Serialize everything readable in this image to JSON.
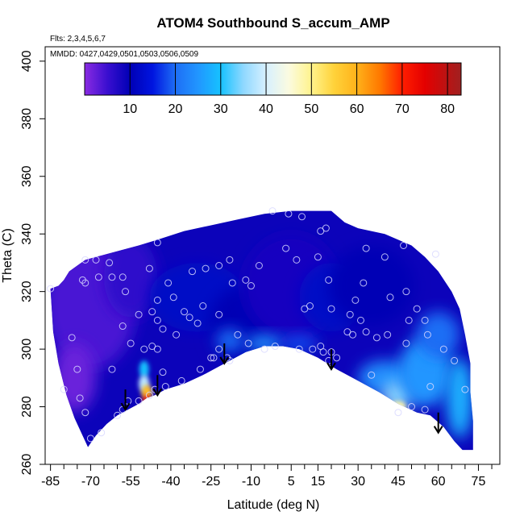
{
  "chart_data": {
    "type": "heatmap",
    "title": "ATOM4 Southbound S_accum_AMP",
    "flights_label": "Flts: 2,3,4,5,6,7",
    "mmdd_label": "MMDD: 0427,0429,0501,0503,0506,0509",
    "xlabel": "Latitude (deg N)",
    "ylabel": "Theta (C)",
    "xlim": [
      -87,
      83
    ],
    "ylim": [
      260,
      405
    ],
    "x_ticks": [
      -85,
      -70,
      -55,
      -40,
      -25,
      -10,
      5,
      15,
      30,
      45,
      60,
      75
    ],
    "x_minor_ticks": [
      -80,
      -75,
      -65,
      -60,
      -50,
      -45,
      -35,
      -30,
      -20,
      -15,
      -5,
      0,
      10,
      20,
      25,
      35,
      40,
      50,
      55,
      65,
      70,
      80
    ],
    "y_ticks": [
      260,
      280,
      300,
      320,
      340,
      360,
      380,
      400
    ],
    "colorbar": {
      "range": [
        0,
        83
      ],
      "ticks": [
        10,
        20,
        30,
        40,
        50,
        60,
        70,
        80
      ],
      "stops": [
        {
          "v": 0,
          "c": "#8a2be2"
        },
        {
          "v": 5,
          "c": "#3a0fd0"
        },
        {
          "v": 10,
          "c": "#0000b5"
        },
        {
          "v": 15,
          "c": "#0015e0"
        },
        {
          "v": 20,
          "c": "#1e6ef5"
        },
        {
          "v": 25,
          "c": "#2196ff"
        },
        {
          "v": 30,
          "c": "#16c2ff"
        },
        {
          "v": 35,
          "c": "#8fd8ff"
        },
        {
          "v": 40,
          "c": "#d7f0ff"
        },
        {
          "v": 45,
          "c": "#fbfbe0"
        },
        {
          "v": 50,
          "c": "#fff38c"
        },
        {
          "v": 55,
          "c": "#ffd23a"
        },
        {
          "v": 60,
          "c": "#ffb21a"
        },
        {
          "v": 65,
          "c": "#ff7a00"
        },
        {
          "v": 70,
          "c": "#ff1e00"
        },
        {
          "v": 75,
          "c": "#e40000"
        },
        {
          "v": 83,
          "c": "#a02020"
        }
      ]
    },
    "data_region_top": [
      [
        -85,
        321
      ],
      [
        -82,
        322
      ],
      [
        -80,
        324
      ],
      [
        -78,
        327
      ],
      [
        -75,
        329
      ],
      [
        -72,
        331
      ],
      [
        -68,
        332
      ],
      [
        -60,
        334
      ],
      [
        -52,
        336
      ],
      [
        -45,
        338
      ],
      [
        -35,
        341
      ],
      [
        -25,
        343
      ],
      [
        -15,
        345
      ],
      [
        -5,
        347
      ],
      [
        5,
        348
      ],
      [
        20,
        348
      ],
      [
        25,
        344
      ],
      [
        30,
        342
      ],
      [
        40,
        340
      ],
      [
        50,
        336
      ],
      [
        55,
        332
      ],
      [
        60,
        327
      ],
      [
        65,
        320
      ],
      [
        68,
        314
      ],
      [
        70,
        305
      ],
      [
        72,
        295
      ],
      [
        72,
        285
      ],
      [
        73,
        275
      ],
      [
        73,
        265
      ]
    ],
    "data_region_bottom": [
      [
        -85,
        321
      ],
      [
        -84,
        306
      ],
      [
        -82,
        295
      ],
      [
        -79,
        284
      ],
      [
        -76,
        276
      ],
      [
        -73,
        270
      ],
      [
        -71,
        266
      ],
      [
        -68,
        270
      ],
      [
        -64,
        274
      ],
      [
        -60,
        277
      ],
      [
        -56,
        279
      ],
      [
        -52,
        281
      ],
      [
        -49,
        283
      ],
      [
        -46,
        284
      ],
      [
        -42,
        286
      ],
      [
        -35,
        288
      ],
      [
        -28,
        291
      ],
      [
        -20,
        295
      ],
      [
        -12,
        299
      ],
      [
        -5,
        301
      ],
      [
        2,
        301
      ],
      [
        8,
        300
      ],
      [
        15,
        297
      ],
      [
        22,
        293
      ],
      [
        30,
        289
      ],
      [
        38,
        285
      ],
      [
        45,
        281
      ],
      [
        52,
        278
      ],
      [
        57,
        277
      ],
      [
        62,
        273
      ],
      [
        66,
        268
      ],
      [
        69,
        265
      ],
      [
        73,
        265
      ]
    ],
    "field_patches": [
      {
        "cx": -70,
        "cy": 315,
        "rx": 17,
        "ry": 22,
        "v": 4
      },
      {
        "cx": -76,
        "cy": 290,
        "rx": 8,
        "ry": 12,
        "v": 2
      },
      {
        "cx": -55,
        "cy": 325,
        "rx": 10,
        "ry": 14,
        "v": 6
      },
      {
        "cx": -30,
        "cy": 318,
        "rx": 18,
        "ry": 12,
        "v": 12
      },
      {
        "cx": -12,
        "cy": 308,
        "rx": 14,
        "ry": 14,
        "v": 10
      },
      {
        "cx": 5,
        "cy": 322,
        "rx": 18,
        "ry": 18,
        "v": 8
      },
      {
        "cx": 20,
        "cy": 318,
        "rx": 12,
        "ry": 12,
        "v": 12
      },
      {
        "cx": 35,
        "cy": 322,
        "rx": 16,
        "ry": 14,
        "v": 10
      },
      {
        "cx": -5,
        "cy": 302,
        "rx": 7,
        "ry": 3,
        "v": 24
      },
      {
        "cx": 8,
        "cy": 302,
        "rx": 7,
        "ry": 3,
        "v": 18
      },
      {
        "cx": -18,
        "cy": 303,
        "rx": 5,
        "ry": 4,
        "v": 20
      },
      {
        "cx": 40,
        "cy": 290,
        "rx": 10,
        "ry": 6,
        "v": 24
      },
      {
        "cx": 45,
        "cy": 284,
        "rx": 6,
        "ry": 5,
        "v": 35
      },
      {
        "cx": 55,
        "cy": 292,
        "rx": 10,
        "ry": 12,
        "v": 25
      },
      {
        "cx": 60,
        "cy": 305,
        "rx": 8,
        "ry": 8,
        "v": 20
      },
      {
        "cx": 68,
        "cy": 283,
        "rx": 5,
        "ry": 14,
        "v": 28
      },
      {
        "cx": 45,
        "cy": 280,
        "rx": 3,
        "ry": 2,
        "v": 48
      },
      {
        "cx": -50,
        "cy": 293,
        "rx": 1.8,
        "ry": 3,
        "v": 30
      },
      {
        "cx": -50,
        "cy": 288,
        "rx": 2,
        "ry": 3,
        "v": 38
      },
      {
        "cx": -49,
        "cy": 285,
        "rx": 2,
        "ry": 2.5,
        "v": 58
      },
      {
        "cx": -49,
        "cy": 282,
        "rx": 1.5,
        "ry": 2,
        "v": 70
      }
    ],
    "background_value": 9,
    "points": [
      [
        -85,
        321
      ],
      [
        -80,
        286
      ],
      [
        -72,
        331
      ],
      [
        -73,
        324
      ],
      [
        -72,
        323
      ],
      [
        -68,
        331
      ],
      [
        -63,
        330
      ],
      [
        -67,
        325
      ],
      [
        -62,
        325
      ],
      [
        -58,
        325
      ],
      [
        -57,
        320
      ],
      [
        -45,
        337
      ],
      [
        -47,
        313
      ],
      [
        -45,
        317
      ],
      [
        -45,
        310
      ],
      [
        -43,
        307
      ],
      [
        -47,
        301
      ],
      [
        -50,
        300
      ],
      [
        -45,
        300
      ],
      [
        -38,
        305
      ],
      [
        -41,
        323
      ],
      [
        -32,
        327
      ],
      [
        -27,
        328
      ],
      [
        -33,
        311
      ],
      [
        -28,
        315
      ],
      [
        -22,
        312
      ],
      [
        -18,
        331
      ],
      [
        -12,
        324
      ],
      [
        -22,
        329
      ],
      [
        -17,
        323
      ],
      [
        -19,
        297
      ],
      [
        -18,
        296
      ],
      [
        -10,
        322
      ],
      [
        -7,
        329
      ],
      [
        -2,
        348
      ],
      [
        4,
        347
      ],
      [
        3,
        335
      ],
      [
        9,
        346
      ],
      [
        7,
        331
      ],
      [
        10,
        314
      ],
      [
        12,
        315
      ],
      [
        15,
        332
      ],
      [
        16,
        341
      ],
      [
        18,
        342
      ],
      [
        19,
        324
      ],
      [
        17,
        299
      ],
      [
        16,
        301
      ],
      [
        22,
        297
      ],
      [
        20,
        299
      ],
      [
        19,
        296
      ],
      [
        26,
        306
      ],
      [
        29,
        317
      ],
      [
        32,
        323
      ],
      [
        33,
        335
      ],
      [
        27,
        312
      ],
      [
        40,
        332
      ],
      [
        47,
        336
      ],
      [
        48,
        320
      ],
      [
        49,
        310
      ],
      [
        42,
        318
      ],
      [
        52,
        314
      ],
      [
        55,
        310
      ],
      [
        59,
        333
      ],
      [
        48,
        302
      ],
      [
        41,
        305
      ],
      [
        37,
        304
      ],
      [
        35,
        291
      ],
      [
        28,
        305
      ],
      [
        31,
        310
      ],
      [
        33,
        306
      ],
      [
        20,
        314
      ],
      [
        13,
        300
      ],
      [
        8,
        300
      ],
      [
        -1,
        301
      ],
      [
        -5,
        300
      ],
      [
        -11,
        302
      ],
      [
        -22,
        300
      ],
      [
        -24,
        297
      ],
      [
        -29,
        293
      ],
      [
        -36,
        289
      ],
      [
        -42,
        287
      ],
      [
        -46,
        286
      ],
      [
        -48,
        284
      ],
      [
        -52,
        282
      ],
      [
        -56,
        282
      ],
      [
        -58,
        279
      ],
      [
        -60,
        277
      ],
      [
        -66,
        271
      ],
      [
        -70,
        269
      ],
      [
        -72,
        278
      ],
      [
        -74,
        283
      ],
      [
        -75,
        293
      ],
      [
        -77,
        304
      ],
      [
        -62,
        293
      ],
      [
        -55,
        302
      ],
      [
        -58,
        308
      ],
      [
        -52,
        312
      ],
      [
        -48,
        328
      ],
      [
        -39,
        318
      ],
      [
        -35,
        313
      ],
      [
        -30,
        309
      ],
      [
        -15,
        305
      ],
      [
        -25,
        297
      ],
      [
        -43,
        292
      ],
      [
        57,
        287
      ],
      [
        62,
        300
      ],
      [
        56,
        305
      ],
      [
        66,
        296
      ],
      [
        70,
        286
      ],
      [
        55,
        279
      ],
      [
        45,
        278
      ],
      [
        50,
        280
      ]
    ],
    "arrows": [
      {
        "lat": -57,
        "theta_top": 286,
        "theta_tip": 279
      },
      {
        "lat": -45,
        "theta_top": 291,
        "theta_tip": 284
      },
      {
        "lat": -20,
        "theta_top": 302,
        "theta_tip": 295
      },
      {
        "lat": 20,
        "theta_top": 300,
        "theta_tip": 293
      },
      {
        "lat": 60,
        "theta_top": 278,
        "theta_tip": 271
      }
    ]
  }
}
